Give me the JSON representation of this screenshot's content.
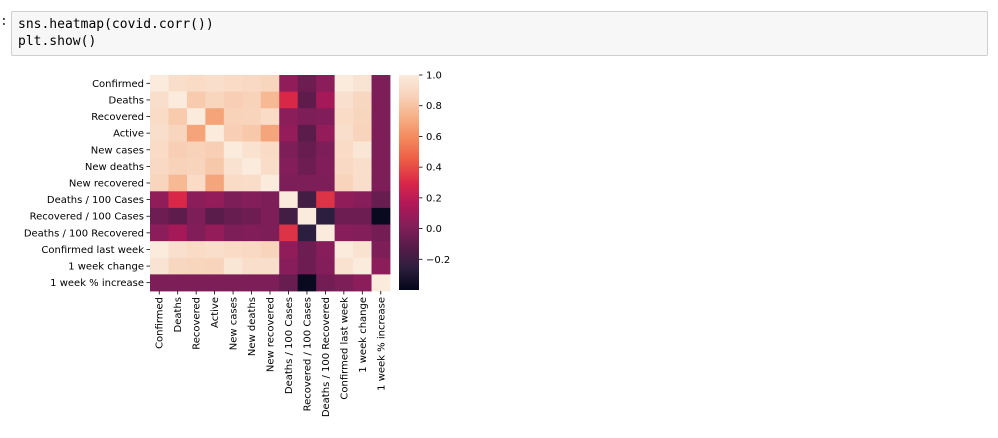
{
  "notebook": {
    "prompt": ":",
    "code_lines": [
      "sns.heatmap(covid.corr())",
      "plt.show()"
    ]
  },
  "chart_data": {
    "type": "heatmap",
    "title": "",
    "labels": [
      "Confirmed",
      "Deaths",
      "Recovered",
      "Active",
      "New cases",
      "New deaths",
      "New recovered",
      "Deaths / 100 Cases",
      "Recovered / 100 Cases",
      "Deaths / 100 Recovered",
      "Confirmed last week",
      "1 week change",
      "1 week % increase"
    ],
    "matrix": [
      [
        1.0,
        0.93,
        0.91,
        0.93,
        0.91,
        0.9,
        0.88,
        0.06,
        -0.05,
        0.04,
        1.0,
        0.96,
        0.0
      ],
      [
        0.93,
        1.0,
        0.83,
        0.88,
        0.85,
        0.86,
        0.76,
        0.3,
        -0.1,
        0.12,
        0.94,
        0.89,
        0.0
      ],
      [
        0.91,
        0.83,
        1.0,
        0.68,
        0.86,
        0.87,
        0.91,
        0.04,
        0.0,
        0.01,
        0.91,
        0.88,
        0.0
      ],
      [
        0.93,
        0.88,
        0.68,
        1.0,
        0.85,
        0.82,
        0.69,
        0.07,
        -0.11,
        0.07,
        0.93,
        0.87,
        0.0
      ],
      [
        0.91,
        0.85,
        0.86,
        0.85,
        1.0,
        0.95,
        0.91,
        0.0,
        -0.07,
        0.0,
        0.91,
        0.97,
        0.0
      ],
      [
        0.9,
        0.86,
        0.87,
        0.82,
        0.95,
        1.0,
        0.92,
        0.02,
        -0.05,
        0.01,
        0.9,
        0.93,
        0.0
      ],
      [
        0.88,
        0.76,
        0.91,
        0.69,
        0.91,
        0.92,
        1.0,
        0.0,
        0.0,
        0.0,
        0.87,
        0.93,
        0.0
      ],
      [
        0.06,
        0.3,
        0.04,
        0.07,
        0.0,
        0.02,
        0.0,
        1.0,
        -0.19,
        0.33,
        0.06,
        0.03,
        -0.07
      ],
      [
        -0.05,
        -0.1,
        0.0,
        -0.11,
        -0.07,
        -0.05,
        0.0,
        -0.19,
        1.0,
        -0.26,
        -0.05,
        -0.05,
        -0.38
      ],
      [
        0.04,
        0.12,
        0.01,
        0.07,
        0.0,
        0.01,
        0.0,
        0.33,
        -0.26,
        1.0,
        0.03,
        0.02,
        -0.03
      ],
      [
        1.0,
        0.94,
        0.91,
        0.93,
        0.91,
        0.9,
        0.87,
        0.06,
        -0.05,
        0.03,
        1.0,
        0.95,
        0.0
      ],
      [
        0.96,
        0.89,
        0.88,
        0.87,
        0.97,
        0.93,
        0.93,
        0.03,
        -0.05,
        0.02,
        0.95,
        1.0,
        0.04
      ],
      [
        0.0,
        0.0,
        0.0,
        0.0,
        0.0,
        0.0,
        0.0,
        -0.07,
        -0.38,
        -0.03,
        0.0,
        0.04,
        1.0
      ]
    ],
    "vmin": -0.4,
    "vmax": 1.0,
    "colormap": "rocket",
    "colorbar": {
      "ticks": [
        1.0,
        0.8,
        0.6,
        0.4,
        0.2,
        0.0,
        -0.2
      ],
      "tick_labels": [
        "1.0",
        "0.8",
        "0.6",
        "0.4",
        "0.2",
        "0.0",
        "−0.2"
      ]
    }
  }
}
